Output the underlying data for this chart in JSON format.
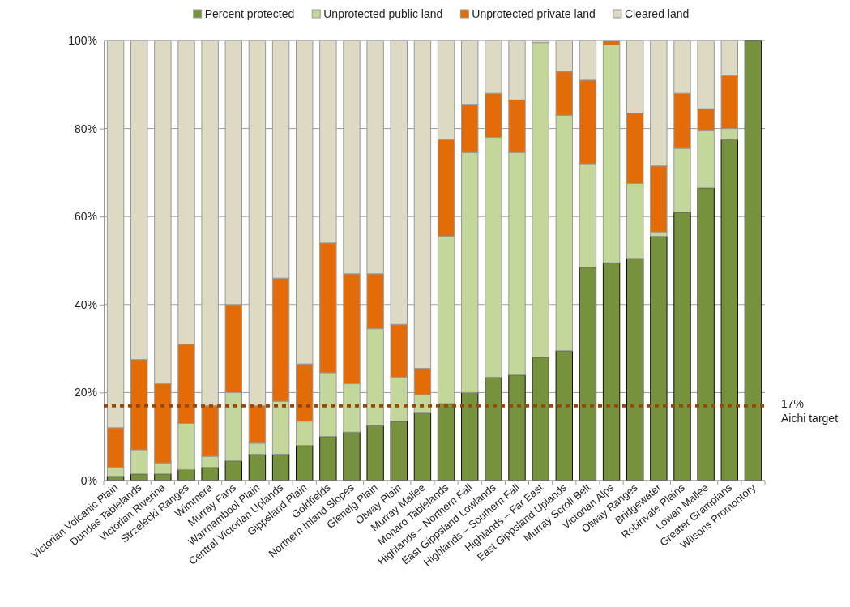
{
  "chart_data": {
    "type": "bar",
    "stacked": true,
    "categories": [
      "Victorian Volcanic Plain",
      "Dundas Tablelands",
      "Victorian Riverina",
      "Strzelecki Ranges",
      "Wimmera",
      "Murray Fans",
      "Warrnambool Plain",
      "Central Victorian Uplands",
      "Gippsland Plain",
      "Goldfields",
      "Northern Inland Slopes",
      "Glenelg Plain",
      "Otway Plain",
      "Murray Mallee",
      "Monaro Tablelands",
      "Highlands – Northern Fall",
      "East Gippsland Lowlands",
      "Highlands – Southern Fall",
      "Highlands – Far East",
      "East Gippsland Uplands",
      "Murray Scroll Belt",
      "Victorian Alps",
      "Otway Ranges",
      "Bridgewater",
      "Robinvale Plains",
      "Lowan Mallee",
      "Greater Grampians",
      "Wilsons Promontory"
    ],
    "series": [
      {
        "name": "Percent protected",
        "color": "#76923c",
        "values": [
          1,
          1.5,
          1.5,
          2.5,
          3,
          4.5,
          6,
          6,
          8,
          10,
          11,
          12.5,
          13.5,
          15.5,
          17.5,
          20,
          23.5,
          24,
          28,
          29.5,
          48.5,
          49.5,
          50.5,
          55.5,
          61,
          66.5,
          77.5,
          100
        ]
      },
      {
        "name": "Unprotected public land",
        "color": "#c4d79b",
        "values": [
          2,
          5.5,
          2.5,
          10.5,
          2.5,
          15.5,
          2.5,
          12,
          5.5,
          14.5,
          11,
          22,
          10,
          4,
          38,
          54.5,
          54.5,
          50.5,
          71.5,
          53.5,
          23.5,
          49.5,
          17,
          1,
          14.5,
          13,
          2.5,
          0
        ]
      },
      {
        "name": "Unprotected private land",
        "color": "#e36c09",
        "values": [
          9,
          20.5,
          18,
          18,
          11.5,
          20,
          8.5,
          28,
          13,
          29.5,
          25,
          12.5,
          12,
          6,
          22,
          11,
          10,
          12,
          0,
          10,
          19,
          1,
          16,
          15,
          12.5,
          5,
          12,
          0
        ]
      },
      {
        "name": "Cleared land",
        "color": "#ddd9c3",
        "values": [
          88,
          72.5,
          78,
          69,
          83,
          60,
          83,
          54,
          73.5,
          46,
          53,
          53,
          64.5,
          74.5,
          22.5,
          14.5,
          12,
          13.5,
          0.5,
          7,
          9,
          0,
          16.5,
          28.5,
          12,
          15.5,
          8,
          0
        ]
      }
    ],
    "ylim": [
      0,
      100
    ],
    "yticks": [
      {
        "value": 0,
        "label": "0%"
      },
      {
        "value": 20,
        "label": "20%"
      },
      {
        "value": 40,
        "label": "40%"
      },
      {
        "value": 60,
        "label": "60%"
      },
      {
        "value": 80,
        "label": "80%"
      },
      {
        "value": 100,
        "label": "100%"
      }
    ],
    "grid": "y",
    "legend": "top",
    "ref_lines": [
      {
        "axis": "y",
        "value": 17,
        "label": "17%\nAichi target",
        "color": "#974806",
        "line_style": "dotted"
      }
    ]
  }
}
